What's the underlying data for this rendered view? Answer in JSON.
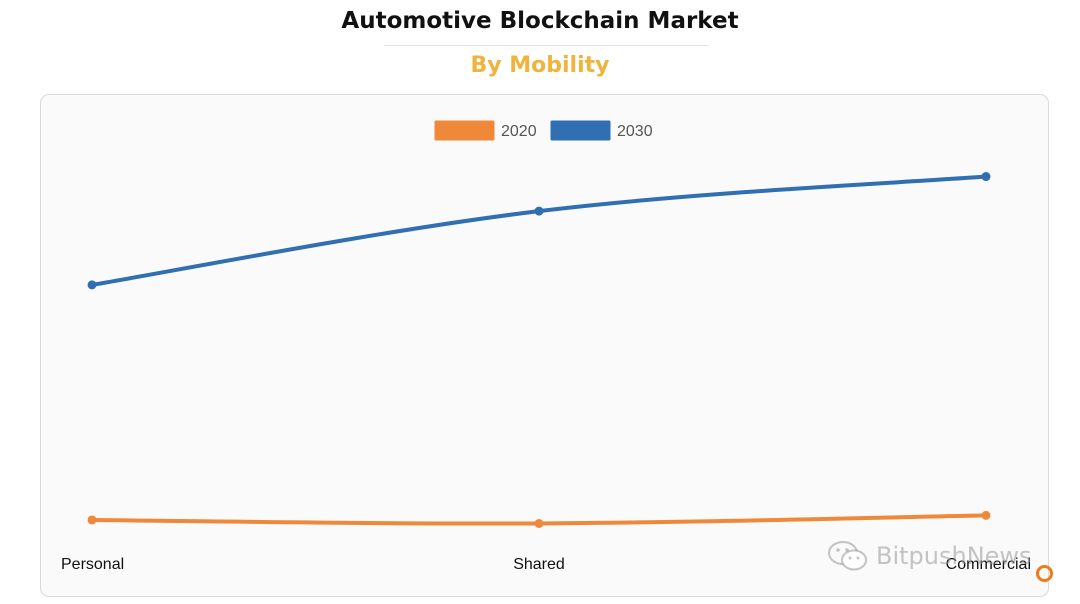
{
  "header": {
    "title": "Automotive Blockchain Market",
    "subtitle": "By Mobility"
  },
  "colors": {
    "subtitle": "#f0b43c",
    "series_2020": "#f0883a",
    "series_2030": "#2f6fb2"
  },
  "watermark": {
    "text": "BitpushNews",
    "logo_icon": "wechat-logo-icon"
  },
  "chart_data": {
    "type": "line",
    "title": "Automotive Blockchain Market",
    "subtitle": "By Mobility",
    "categories": [
      "Personal",
      "Shared",
      "Commercial"
    ],
    "series": [
      {
        "name": "2020",
        "color": "#f0883a",
        "values": [
          4.6,
          4.3,
          5.0
        ]
      },
      {
        "name": "2030",
        "color": "#2f6fb2",
        "values": [
          25.0,
          31.4,
          34.4
        ]
      }
    ],
    "ylim": [
      0,
      40
    ],
    "xlabel": "",
    "ylabel": "",
    "grid": false,
    "legend_position": "top"
  }
}
